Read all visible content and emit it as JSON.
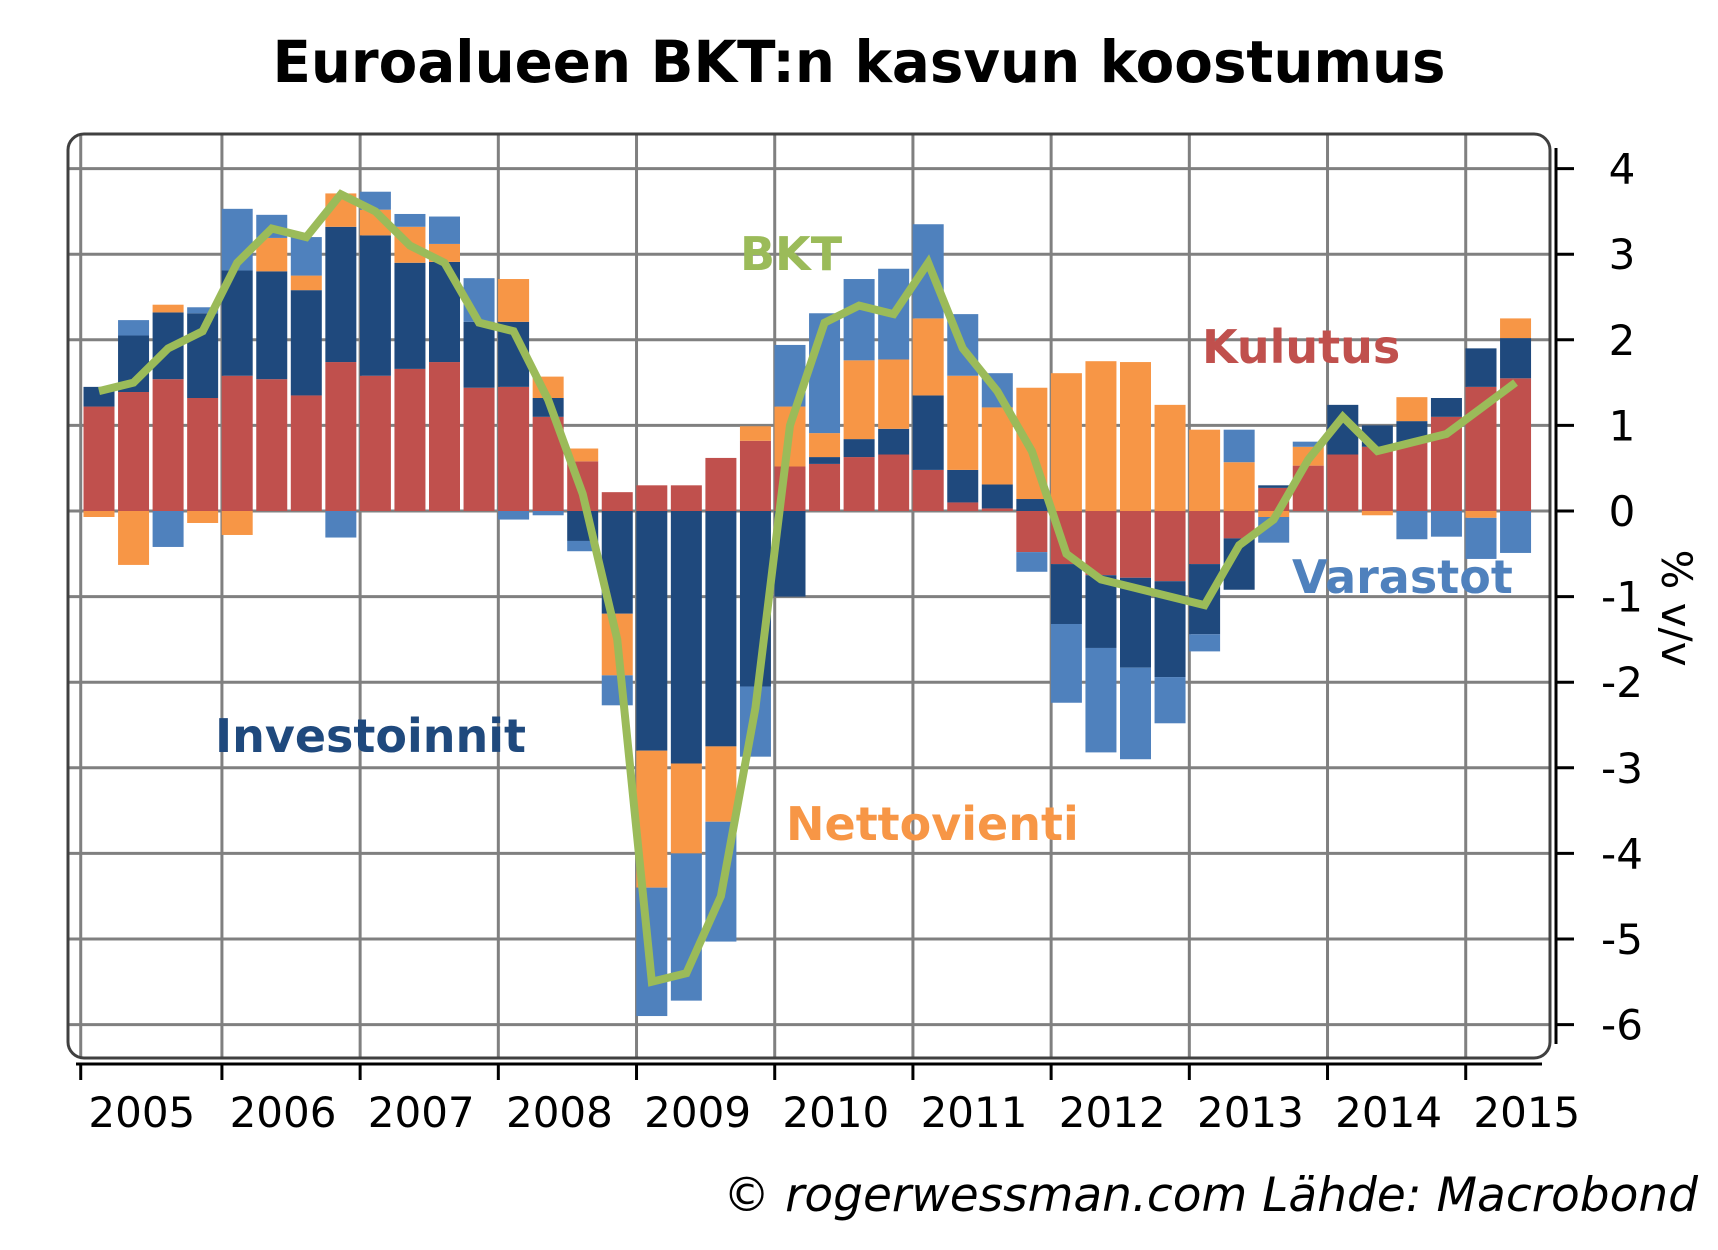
{
  "chart_data": {
    "type": "bar",
    "subtype": "stacked-bar-with-line",
    "title": "Euroalueen BKT:n kasvun koostumus",
    "ylabel": "% v/v",
    "xlabel": "",
    "ylim": [
      -6.4,
      4.3
    ],
    "yticks": [
      4,
      3,
      2,
      1,
      0,
      -1,
      -2,
      -3,
      -4,
      -5,
      -6
    ],
    "xticks": [
      "2005",
      "2006",
      "2007",
      "2008",
      "2009",
      "2010",
      "2011",
      "2012",
      "2013",
      "2014",
      "2015"
    ],
    "grid": true,
    "y_axis_side": "right",
    "quarters": [
      "2005Q1",
      "2005Q2",
      "2005Q3",
      "2005Q4",
      "2006Q1",
      "2006Q2",
      "2006Q3",
      "2006Q4",
      "2007Q1",
      "2007Q2",
      "2007Q3",
      "2007Q4",
      "2008Q1",
      "2008Q2",
      "2008Q3",
      "2008Q4",
      "2009Q1",
      "2009Q2",
      "2009Q3",
      "2009Q4",
      "2010Q1",
      "2010Q2",
      "2010Q3",
      "2010Q4",
      "2011Q1",
      "2011Q2",
      "2011Q3",
      "2011Q4",
      "2012Q1",
      "2012Q2",
      "2012Q3",
      "2012Q4",
      "2013Q1",
      "2013Q2",
      "2013Q3",
      "2013Q4",
      "2014Q1",
      "2014Q2",
      "2014Q3",
      "2014Q4",
      "2015Q1",
      "2015Q2"
    ],
    "series": [
      {
        "name": "Kulutus",
        "color": "#c0504d",
        "kind": "bar",
        "values": [
          1.22,
          1.39,
          1.54,
          1.32,
          1.58,
          1.54,
          1.35,
          1.74,
          1.58,
          1.66,
          1.74,
          1.44,
          1.45,
          1.1,
          0.58,
          0.22,
          0.3,
          0.3,
          0.62,
          0.82,
          0.52,
          0.55,
          0.63,
          0.66,
          0.48,
          0.1,
          0.03,
          -0.48,
          -0.62,
          -0.75,
          -0.78,
          -0.82,
          -0.62,
          -0.32,
          0.27,
          0.53,
          0.66,
          0.75,
          0.8,
          1.1,
          1.45,
          1.55
        ]
      },
      {
        "name": "Investoinnit",
        "color": "#1f497d",
        "kind": "bar",
        "values": [
          0.23,
          0.66,
          0.78,
          0.99,
          1.23,
          1.26,
          1.23,
          1.58,
          1.64,
          1.24,
          1.17,
          0.77,
          0.76,
          0.22,
          -0.35,
          -1.2,
          -2.8,
          -2.95,
          -2.75,
          -2.05,
          -1.0,
          0.08,
          0.21,
          0.3,
          0.87,
          0.38,
          0.28,
          0.14,
          -0.7,
          -0.85,
          -1.05,
          -1.12,
          -0.82,
          -0.6,
          0.03,
          0.0,
          0.58,
          0.25,
          0.25,
          0.22,
          0.45,
          0.47
        ]
      },
      {
        "name": "Nettovienti",
        "color": "#f79646",
        "kind": "bar",
        "values": [
          -0.07,
          -0.63,
          0.09,
          -0.14,
          -0.28,
          0.39,
          0.17,
          0.39,
          0.3,
          0.42,
          0.21,
          -0.0,
          0.5,
          0.25,
          0.15,
          -0.72,
          -1.6,
          -1.05,
          -0.88,
          0.17,
          0.7,
          0.28,
          0.92,
          0.81,
          0.9,
          1.1,
          0.9,
          1.3,
          1.61,
          1.75,
          1.74,
          1.24,
          0.95,
          0.57,
          -0.07,
          0.22,
          0.0,
          -0.05,
          0.28,
          0.0,
          -0.08,
          0.23
        ]
      },
      {
        "name": "Varastot",
        "color": "#4f81bd",
        "kind": "bar",
        "values": [
          0.0,
          0.18,
          -0.42,
          0.07,
          0.72,
          0.27,
          0.45,
          -0.31,
          0.21,
          0.15,
          0.32,
          0.51,
          -0.1,
          -0.05,
          -0.12,
          -0.35,
          -1.5,
          -1.72,
          -1.4,
          -0.82,
          0.72,
          1.4,
          0.95,
          1.06,
          1.1,
          0.72,
          0.4,
          -0.23,
          -0.92,
          -1.22,
          -1.07,
          -0.54,
          -0.2,
          0.38,
          -0.3,
          0.06,
          0.0,
          0.0,
          -0.33,
          -0.3,
          -0.48,
          -0.49
        ]
      },
      {
        "name": "BKT",
        "color": "#9bbb59",
        "kind": "line",
        "values": [
          1.4,
          1.5,
          1.9,
          2.1,
          2.9,
          3.3,
          3.2,
          3.7,
          3.5,
          3.1,
          2.9,
          2.2,
          2.1,
          1.3,
          0.2,
          -1.5,
          -5.5,
          -5.4,
          -4.5,
          -2.3,
          1.0,
          2.2,
          2.4,
          2.3,
          2.9,
          1.9,
          1.4,
          0.7,
          -0.5,
          -0.8,
          -0.9,
          -1.0,
          -1.1,
          -0.4,
          -0.1,
          0.6,
          1.1,
          0.7,
          0.8,
          0.9,
          1.2,
          1.5
        ]
      }
    ],
    "annotations": [
      {
        "text": "BKT",
        "series": "BKT"
      },
      {
        "text": "Kulutus",
        "series": "Kulutus"
      },
      {
        "text": "Varastot",
        "series": "Varastot"
      },
      {
        "text": "Investoinnit",
        "series": "Investoinnit"
      },
      {
        "text": "Nettovienti",
        "series": "Nettovienti"
      }
    ]
  },
  "footer": "© rogerwessman.com Lähde: Macrobond"
}
